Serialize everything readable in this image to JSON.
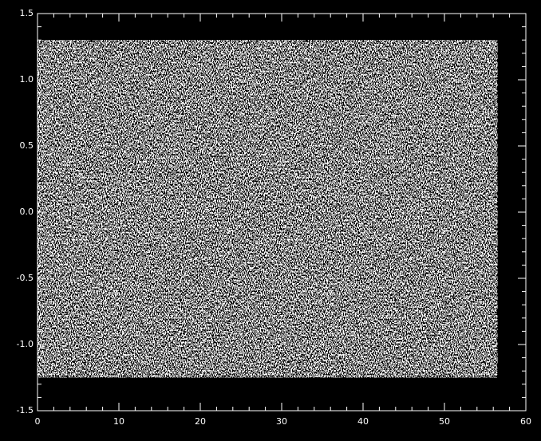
{
  "chart_data": {
    "type": "scatter",
    "xlim": [
      0,
      60
    ],
    "xticks": [
      0,
      10,
      20,
      30,
      40,
      50,
      60
    ],
    "ylim": [
      -1.5,
      1.5
    ],
    "yticks": [
      -1.5,
      {
        "value": -1,
        "label": "-1.0"
      },
      -0.5,
      {
        "value": 0,
        "label": "0.0"
      },
      0.5,
      {
        "value": 1,
        "label": "1.0"
      },
      1.5
    ],
    "xminor": 5,
    "yminor": 5,
    "point_extent": {
      "x": [
        0,
        56.5
      ],
      "y": [
        -1.25,
        1.3
      ]
    },
    "color": "#ffffff",
    "background": "#000000"
  }
}
